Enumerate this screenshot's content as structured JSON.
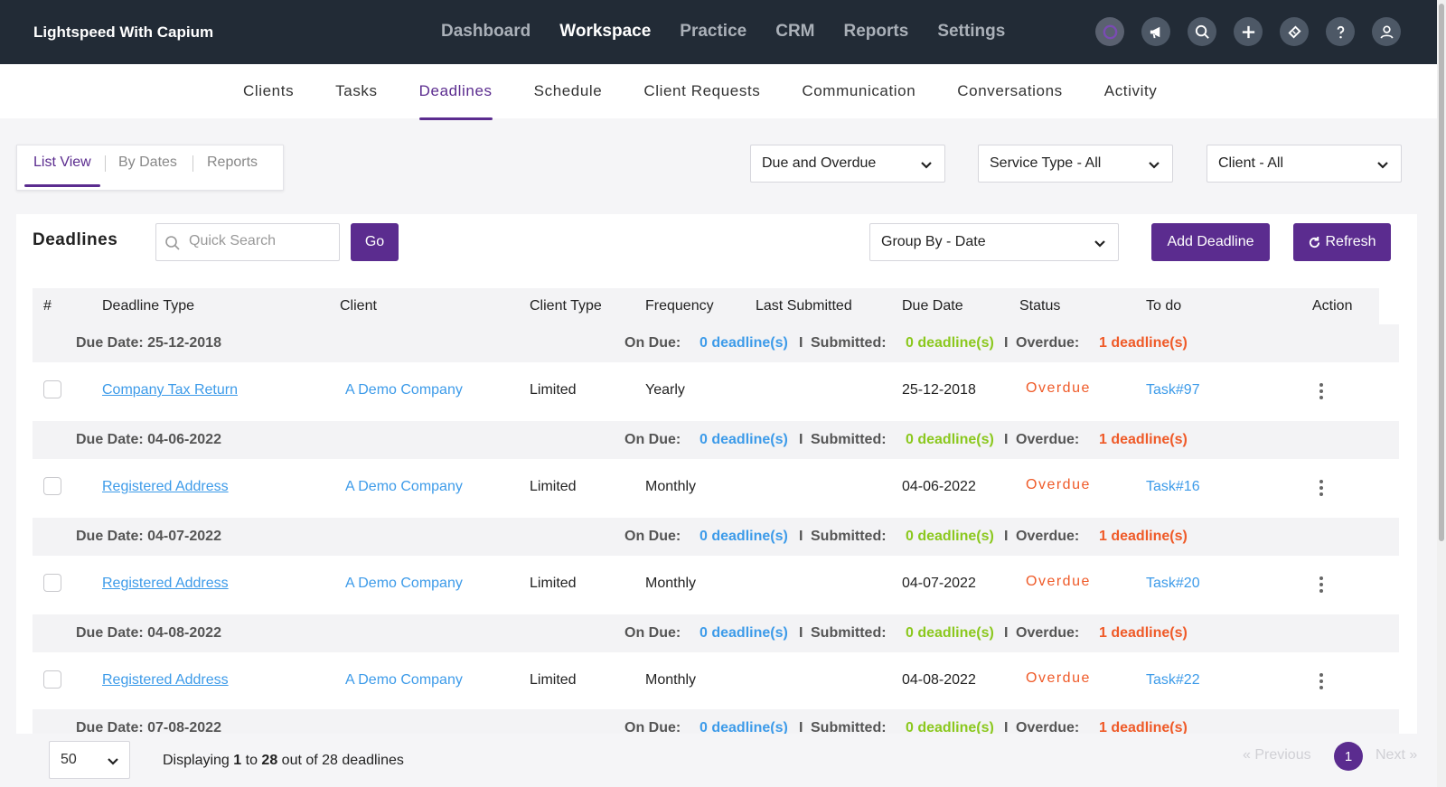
{
  "app": {
    "brand": "Lightspeed With Capium"
  },
  "main_nav": [
    "Dashboard",
    "Workspace",
    "Practice",
    "CRM",
    "Reports",
    "Settings"
  ],
  "main_nav_active": "Workspace",
  "top_icons": [
    "capium-logo-icon",
    "megaphone-icon",
    "search-icon",
    "plus-icon",
    "ticket-icon",
    "help-icon",
    "user-icon"
  ],
  "sub_nav": [
    "Clients",
    "Tasks",
    "Deadlines",
    "Schedule",
    "Client Requests",
    "Communication",
    "Conversations",
    "Activity"
  ],
  "sub_nav_active": "Deadlines",
  "view_options": [
    "List View",
    "By Dates",
    "Reports"
  ],
  "filters": {
    "due": "Due and Overdue",
    "service_type": "Service Type - All",
    "client": "Client - All"
  },
  "panel": {
    "title": "Deadlines",
    "search_placeholder": "Quick Search",
    "go_label": "Go",
    "group_by": "Group By - Date",
    "add_label": "Add Deadline",
    "refresh_label": "Refresh"
  },
  "columns": [
    "#",
    "Deadline Type",
    "Client",
    "Client Type",
    "Frequency",
    "Last Submitted",
    "Due Date",
    "Status",
    "To do",
    "Action"
  ],
  "group_labels": {
    "on_due": "On Due:",
    "submitted": "Submitted:",
    "overdue": "Overdue:",
    "sep": "I"
  },
  "groups": [
    {
      "heading": "Due Date: 25-12-2018",
      "on_due": "0 deadline(s)",
      "submitted": "0 deadline(s)",
      "overdue": "1 deadline(s)",
      "row": {
        "type": "Company Tax Return",
        "client": "A Demo Company",
        "client_type": "Limited",
        "frequency": "Yearly",
        "last_submitted": "",
        "due_date": "25-12-2018",
        "status": "Overdue",
        "todo": "Task#97"
      }
    },
    {
      "heading": "Due Date: 04-06-2022",
      "on_due": "0 deadline(s)",
      "submitted": "0 deadline(s)",
      "overdue": "1 deadline(s)",
      "row": {
        "type": "Registered Address",
        "client": "A Demo Company",
        "client_type": "Limited",
        "frequency": "Monthly",
        "last_submitted": "",
        "due_date": "04-06-2022",
        "status": "Overdue",
        "todo": "Task#16"
      }
    },
    {
      "heading": "Due Date: 04-07-2022",
      "on_due": "0 deadline(s)",
      "submitted": "0 deadline(s)",
      "overdue": "1 deadline(s)",
      "row": {
        "type": "Registered Address",
        "client": "A Demo Company",
        "client_type": "Limited",
        "frequency": "Monthly",
        "last_submitted": "",
        "due_date": "04-07-2022",
        "status": "Overdue",
        "todo": "Task#20"
      }
    },
    {
      "heading": "Due Date: 04-08-2022",
      "on_due": "0 deadline(s)",
      "submitted": "0 deadline(s)",
      "overdue": "1 deadline(s)",
      "row": {
        "type": "Registered Address",
        "client": "A Demo Company",
        "client_type": "Limited",
        "frequency": "Monthly",
        "last_submitted": "",
        "due_date": "04-08-2022",
        "status": "Overdue",
        "todo": "Task#22"
      }
    },
    {
      "heading": "Due Date: 07-08-2022",
      "on_due": "0 deadline(s)",
      "submitted": "0 deadline(s)",
      "overdue": "1 deadline(s)"
    }
  ],
  "footer": {
    "page_size": "50",
    "display_prefix": "Displaying",
    "from": "1",
    "to_word": "to",
    "to": "28",
    "suffix": "out of 28 deadlines",
    "previous": "« Previous",
    "current_page": "1",
    "next": "Next »"
  },
  "colors": {
    "accent": "#5b2c8f",
    "topbar": "#222b36",
    "link": "#3d9be9",
    "green": "#8bc81e",
    "overdue": "#ef5a28"
  }
}
